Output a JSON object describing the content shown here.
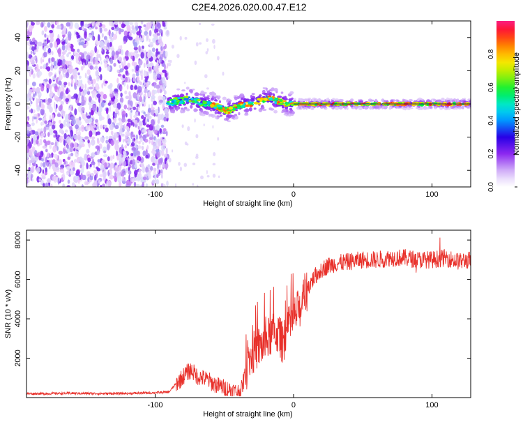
{
  "title": "C2E4.2026.020.00.47.E12",
  "chart_data": [
    {
      "type": "heatmap",
      "xlabel": "Height of straight line (km)",
      "ylabel": "Frequency (Hz)",
      "xlim": [
        -193,
        128
      ],
      "ylim": [
        -50,
        50
      ],
      "xticks": [
        -100,
        0,
        100
      ],
      "yticks": [
        -40,
        -20,
        0,
        20,
        40
      ],
      "noise_region_x": [
        -193,
        -91
      ],
      "trace": {
        "x": [
          -91,
          -88,
          -84,
          -80,
          -76,
          -72,
          -68,
          -64,
          -60,
          -56,
          -52,
          -48,
          -44,
          -40,
          -36,
          -32,
          -28,
          -24,
          -20,
          -16,
          -12,
          -8,
          -4,
          0,
          20,
          40,
          60,
          80,
          100,
          128
        ],
        "y": [
          0,
          1,
          2,
          2,
          3,
          2,
          1,
          0,
          0,
          -1,
          -3,
          -4,
          -3,
          -1,
          0,
          0,
          1,
          2,
          3,
          3,
          2,
          1,
          0,
          0,
          0,
          0,
          0,
          0,
          0,
          0
        ]
      },
      "colorbar": {
        "label": "Normalized spectral amplitude",
        "range": [
          0,
          1
        ],
        "ticks": [
          "0.0",
          "0.2",
          "0.4",
          "0.6",
          "0.8"
        ]
      }
    },
    {
      "type": "line",
      "xlabel": "Height of straight line (km)",
      "ylabel": "SNR (10 * v/v)",
      "xlim": [
        -193,
        128
      ],
      "ylim": [
        0,
        8500
      ],
      "xticks": [
        -100,
        0,
        100
      ],
      "yticks": [
        2000,
        4000,
        6000,
        8000
      ],
      "series": [
        {
          "name": "SNR",
          "color": "#e8302a",
          "x": [
            -193,
            -180,
            -160,
            -140,
            -120,
            -100,
            -90,
            -85,
            -82,
            -78,
            -74,
            -70,
            -66,
            -62,
            -58,
            -54,
            -50,
            -46,
            -42,
            -38,
            -35,
            -32,
            -28,
            -24,
            -20,
            -16,
            -12,
            -8,
            -4,
            0,
            4,
            8,
            12,
            16,
            20,
            25,
            30,
            40,
            50,
            60,
            70,
            80,
            90,
            100,
            110,
            120,
            128
          ],
          "y": [
            200,
            200,
            220,
            200,
            210,
            250,
            280,
            700,
            900,
            1200,
            1400,
            1100,
            1000,
            900,
            700,
            600,
            500,
            400,
            300,
            300,
            1200,
            1900,
            2400,
            2600,
            2800,
            3200,
            3300,
            2800,
            3500,
            4000,
            4500,
            5200,
            5800,
            6200,
            6500,
            6700,
            6800,
            6900,
            7000,
            7000,
            7100,
            7100,
            7000,
            7000,
            7100,
            6900,
            7000
          ]
        }
      ]
    }
  ]
}
